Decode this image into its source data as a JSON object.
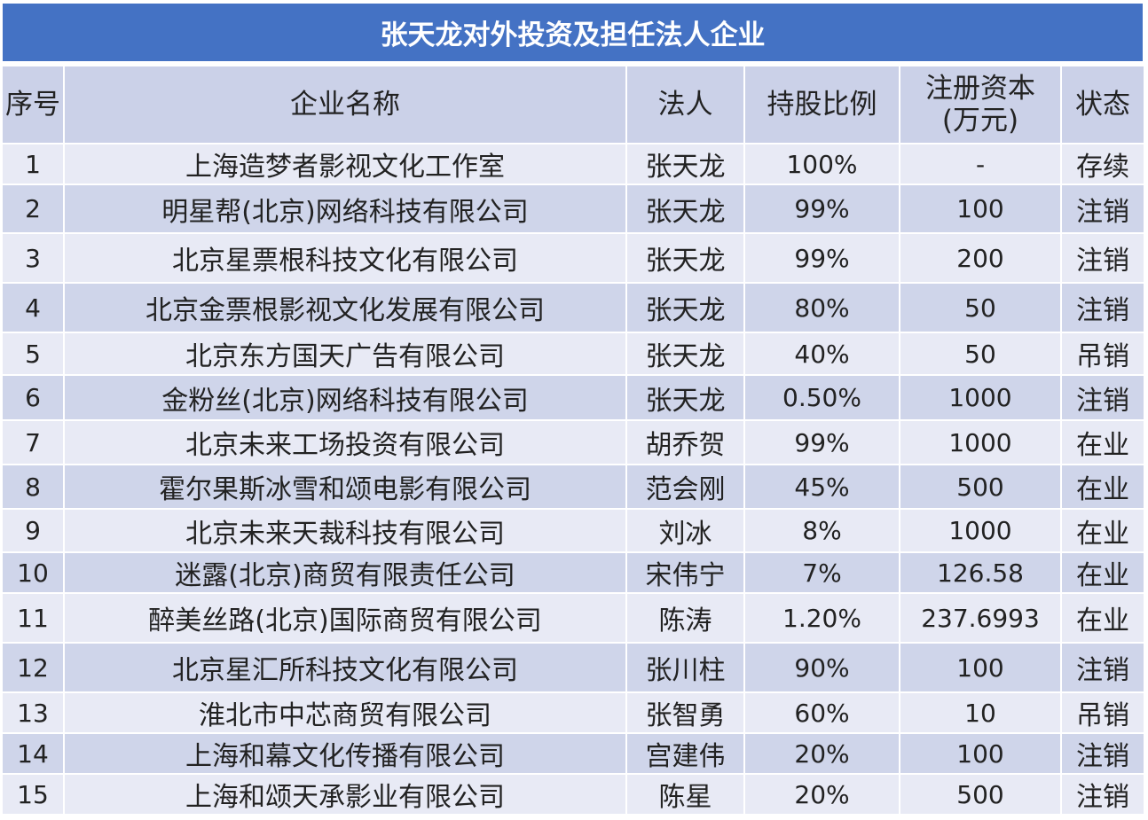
{
  "title": "张天龙对外投资及担任法人企业",
  "headers": {
    "index": "序号",
    "company": "企业名称",
    "legal_person": "法人",
    "share_ratio": "持股比例",
    "capital_line1": "注册资本",
    "capital_line2": "(万元)",
    "status": "状态"
  },
  "rows": [
    {
      "index": "1",
      "company": "上海造梦者影视文化工作室",
      "legal_person": "张天龙",
      "share_ratio": "100%",
      "capital": "-",
      "status": "存续"
    },
    {
      "index": "2",
      "company": "明星帮(北京)网络科技有限公司",
      "legal_person": "张天龙",
      "share_ratio": "99%",
      "capital": "100",
      "status": "注销"
    },
    {
      "index": "3",
      "company": "北京星票根科技文化有限公司",
      "legal_person": "张天龙",
      "share_ratio": "99%",
      "capital": "200",
      "status": "注销"
    },
    {
      "index": "4",
      "company": "北京金票根影视文化发展有限公司",
      "legal_person": "张天龙",
      "share_ratio": "80%",
      "capital": "50",
      "status": "注销"
    },
    {
      "index": "5",
      "company": "北京东方国天广告有限公司",
      "legal_person": "张天龙",
      "share_ratio": "40%",
      "capital": "50",
      "status": "吊销"
    },
    {
      "index": "6",
      "company": "金粉丝(北京)网络科技有限公司",
      "legal_person": "张天龙",
      "share_ratio": "0.50%",
      "capital": "1000",
      "status": "注销"
    },
    {
      "index": "7",
      "company": "北京未来工场投资有限公司",
      "legal_person": "胡乔贺",
      "share_ratio": "99%",
      "capital": "1000",
      "status": "在业"
    },
    {
      "index": "8",
      "company": "霍尔果斯冰雪和颂电影有限公司",
      "legal_person": "范会刚",
      "share_ratio": "45%",
      "capital": "500",
      "status": "在业"
    },
    {
      "index": "9",
      "company": "北京未来天裁科技有限公司",
      "legal_person": "刘冰",
      "share_ratio": "8%",
      "capital": "1000",
      "status": "在业"
    },
    {
      "index": "10",
      "company": "迷露(北京)商贸有限责任公司",
      "legal_person": "宋伟宁",
      "share_ratio": "7%",
      "capital": "126.58",
      "status": "在业"
    },
    {
      "index": "11",
      "company": "醉美丝路(北京)国际商贸有限公司",
      "legal_person": "陈涛",
      "share_ratio": "1.20%",
      "capital": "237.6993",
      "status": "在业"
    },
    {
      "index": "12",
      "company": "北京星汇所科技文化有限公司",
      "legal_person": "张川柱",
      "share_ratio": "90%",
      "capital": "100",
      "status": "注销"
    },
    {
      "index": "13",
      "company": "淮北市中芯商贸有限公司",
      "legal_person": "张智勇",
      "share_ratio": "60%",
      "capital": "10",
      "status": "吊销"
    },
    {
      "index": "14",
      "company": "上海和幕文化传播有限公司",
      "legal_person": "宫建伟",
      "share_ratio": "20%",
      "capital": "100",
      "status": "注销"
    },
    {
      "index": "15",
      "company": "上海和颂天承影业有限公司",
      "legal_person": "陈星",
      "share_ratio": "20%",
      "capital": "500",
      "status": "注销"
    }
  ]
}
